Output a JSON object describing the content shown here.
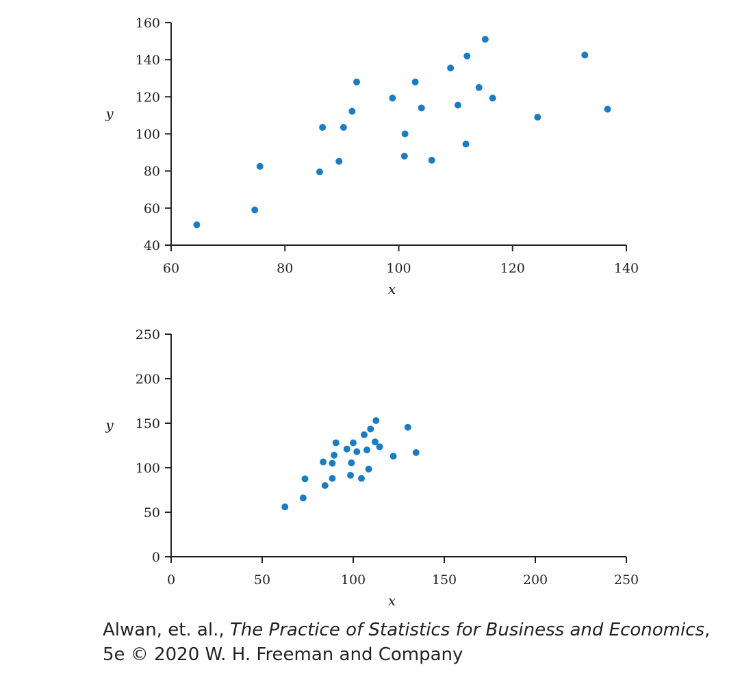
{
  "chart_data": [
    {
      "type": "scatter",
      "xlabel": "x",
      "ylabel": "y",
      "xlim": [
        60,
        140
      ],
      "ylim": [
        40,
        160
      ],
      "xticks": [
        60,
        80,
        100,
        120,
        140
      ],
      "yticks": [
        40,
        60,
        80,
        100,
        120,
        140,
        160
      ],
      "color": "#1a7dc4",
      "points": [
        [
          64.5,
          51
        ],
        [
          74.7,
          59
        ],
        [
          75.6,
          82.5
        ],
        [
          86.1,
          79.5
        ],
        [
          86.6,
          103.5
        ],
        [
          89.5,
          85.2
        ],
        [
          90.3,
          103.5
        ],
        [
          91.8,
          112.2
        ],
        [
          92.6,
          128
        ],
        [
          98.9,
          119.3
        ],
        [
          101,
          88
        ],
        [
          101.1,
          100
        ],
        [
          102.9,
          128
        ],
        [
          104,
          114
        ],
        [
          105.8,
          85.8
        ],
        [
          109.1,
          135.5
        ],
        [
          110.4,
          115.5
        ],
        [
          111.8,
          94.5
        ],
        [
          112,
          142
        ],
        [
          114.1,
          125
        ],
        [
          115.2,
          151
        ],
        [
          116.5,
          119.3
        ],
        [
          124.4,
          109
        ],
        [
          132.7,
          142.5
        ],
        [
          136.7,
          113.3
        ]
      ]
    },
    {
      "type": "scatter",
      "xlabel": "x",
      "ylabel": "y",
      "xlim": [
        0,
        250
      ],
      "ylim": [
        0,
        250
      ],
      "xticks": [
        0,
        50,
        100,
        150,
        200,
        250
      ],
      "yticks": [
        0,
        50,
        100,
        150,
        200,
        250
      ],
      "color": "#1a7dc4",
      "points": [
        [
          62.5,
          56
        ],
        [
          72.5,
          66
        ],
        [
          73.5,
          87.5
        ],
        [
          83.5,
          106.5
        ],
        [
          84.5,
          80
        ],
        [
          88.5,
          88
        ],
        [
          88.5,
          105
        ],
        [
          89.5,
          114
        ],
        [
          90.5,
          128
        ],
        [
          96.5,
          121
        ],
        [
          98.5,
          91.5
        ],
        [
          99,
          105.5
        ],
        [
          100,
          128
        ],
        [
          102,
          118
        ],
        [
          104.5,
          88
        ],
        [
          106,
          137
        ],
        [
          107.5,
          120
        ],
        [
          108.5,
          98.5
        ],
        [
          109.5,
          143.5
        ],
        [
          112,
          129
        ],
        [
          112.5,
          153
        ],
        [
          114.5,
          123.5
        ],
        [
          122,
          113
        ],
        [
          130,
          145.5
        ],
        [
          134.5,
          117
        ]
      ]
    }
  ],
  "credit": {
    "prefix": "Alwan, et. al., ",
    "title": "The Practice of Statistics for Business and Economics",
    "suffix": ",",
    "line2": "5e © 2020 W. H. Freeman and Company"
  }
}
